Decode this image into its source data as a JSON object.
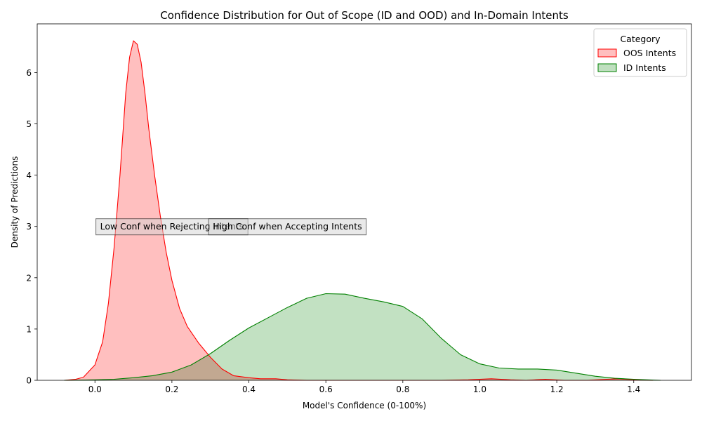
{
  "chart_data": {
    "type": "area",
    "title": "Confidence Distribution for Out of Scope (ID and OOD) and In-Domain Intents",
    "xlabel": "Model's Confidence (0-100%)",
    "ylabel": "Density of Predictions",
    "xlim": [
      -0.15,
      1.55
    ],
    "ylim": [
      0,
      6.95
    ],
    "xticks": [
      0.0,
      0.2,
      0.4,
      0.6,
      0.8,
      1.0,
      1.2,
      1.4
    ],
    "xtick_labels": [
      "0.0",
      "0.2",
      "0.4",
      "0.6",
      "0.8",
      "1.0",
      "1.2",
      "1.4"
    ],
    "yticks": [
      0,
      1,
      2,
      3,
      4,
      5,
      6
    ],
    "ytick_labels": [
      "0",
      "1",
      "2",
      "3",
      "4",
      "5",
      "6"
    ],
    "grid": false,
    "legend": {
      "title": "Category",
      "placement": "top-right"
    },
    "series": [
      {
        "name": "OOS Intents",
        "line_color": "#ff0000",
        "fill_color": "#ffbfbf",
        "points": [
          [
            -0.08,
            0.0
          ],
          [
            -0.05,
            0.02
          ],
          [
            -0.03,
            0.06
          ],
          [
            0.0,
            0.3
          ],
          [
            0.02,
            0.75
          ],
          [
            0.035,
            1.5
          ],
          [
            0.05,
            2.6
          ],
          [
            0.065,
            4.0
          ],
          [
            0.08,
            5.6
          ],
          [
            0.09,
            6.3
          ],
          [
            0.1,
            6.62
          ],
          [
            0.11,
            6.55
          ],
          [
            0.12,
            6.2
          ],
          [
            0.13,
            5.6
          ],
          [
            0.14,
            4.9
          ],
          [
            0.155,
            4.0
          ],
          [
            0.17,
            3.2
          ],
          [
            0.185,
            2.5
          ],
          [
            0.2,
            1.95
          ],
          [
            0.22,
            1.4
          ],
          [
            0.24,
            1.05
          ],
          [
            0.27,
            0.72
          ],
          [
            0.3,
            0.45
          ],
          [
            0.33,
            0.22
          ],
          [
            0.36,
            0.09
          ],
          [
            0.4,
            0.05
          ],
          [
            0.43,
            0.03
          ],
          [
            0.47,
            0.03
          ],
          [
            0.5,
            0.01
          ],
          [
            0.55,
            0.0
          ],
          [
            0.9,
            0.0
          ],
          [
            0.97,
            0.01
          ],
          [
            1.03,
            0.03
          ],
          [
            1.08,
            0.01
          ],
          [
            1.12,
            0.0
          ],
          [
            1.17,
            0.02
          ],
          [
            1.22,
            0.0
          ],
          [
            1.28,
            0.0
          ],
          [
            1.33,
            0.02
          ],
          [
            1.36,
            0.03
          ],
          [
            1.4,
            0.01
          ],
          [
            1.45,
            0.0
          ]
        ]
      },
      {
        "name": "ID Intents",
        "line_color": "#008000",
        "fill_color": "#bfdfbf",
        "points": [
          [
            -0.08,
            0.0
          ],
          [
            0.0,
            0.01
          ],
          [
            0.05,
            0.02
          ],
          [
            0.1,
            0.05
          ],
          [
            0.15,
            0.09
          ],
          [
            0.2,
            0.16
          ],
          [
            0.25,
            0.3
          ],
          [
            0.3,
            0.52
          ],
          [
            0.35,
            0.78
          ],
          [
            0.4,
            1.02
          ],
          [
            0.45,
            1.22
          ],
          [
            0.5,
            1.42
          ],
          [
            0.55,
            1.6
          ],
          [
            0.6,
            1.69
          ],
          [
            0.65,
            1.68
          ],
          [
            0.7,
            1.6
          ],
          [
            0.75,
            1.53
          ],
          [
            0.8,
            1.44
          ],
          [
            0.85,
            1.2
          ],
          [
            0.9,
            0.82
          ],
          [
            0.95,
            0.5
          ],
          [
            1.0,
            0.32
          ],
          [
            1.05,
            0.24
          ],
          [
            1.1,
            0.22
          ],
          [
            1.15,
            0.22
          ],
          [
            1.2,
            0.2
          ],
          [
            1.25,
            0.14
          ],
          [
            1.3,
            0.08
          ],
          [
            1.35,
            0.04
          ],
          [
            1.4,
            0.02
          ],
          [
            1.47,
            0.0
          ]
        ]
      }
    ],
    "annotations": [
      {
        "text": "Low Conf when Rejecting Intents",
        "x": 0.2,
        "y": 3.0
      },
      {
        "text": "High Conf when Accepting Intents",
        "x": 0.5,
        "y": 3.0
      }
    ]
  }
}
